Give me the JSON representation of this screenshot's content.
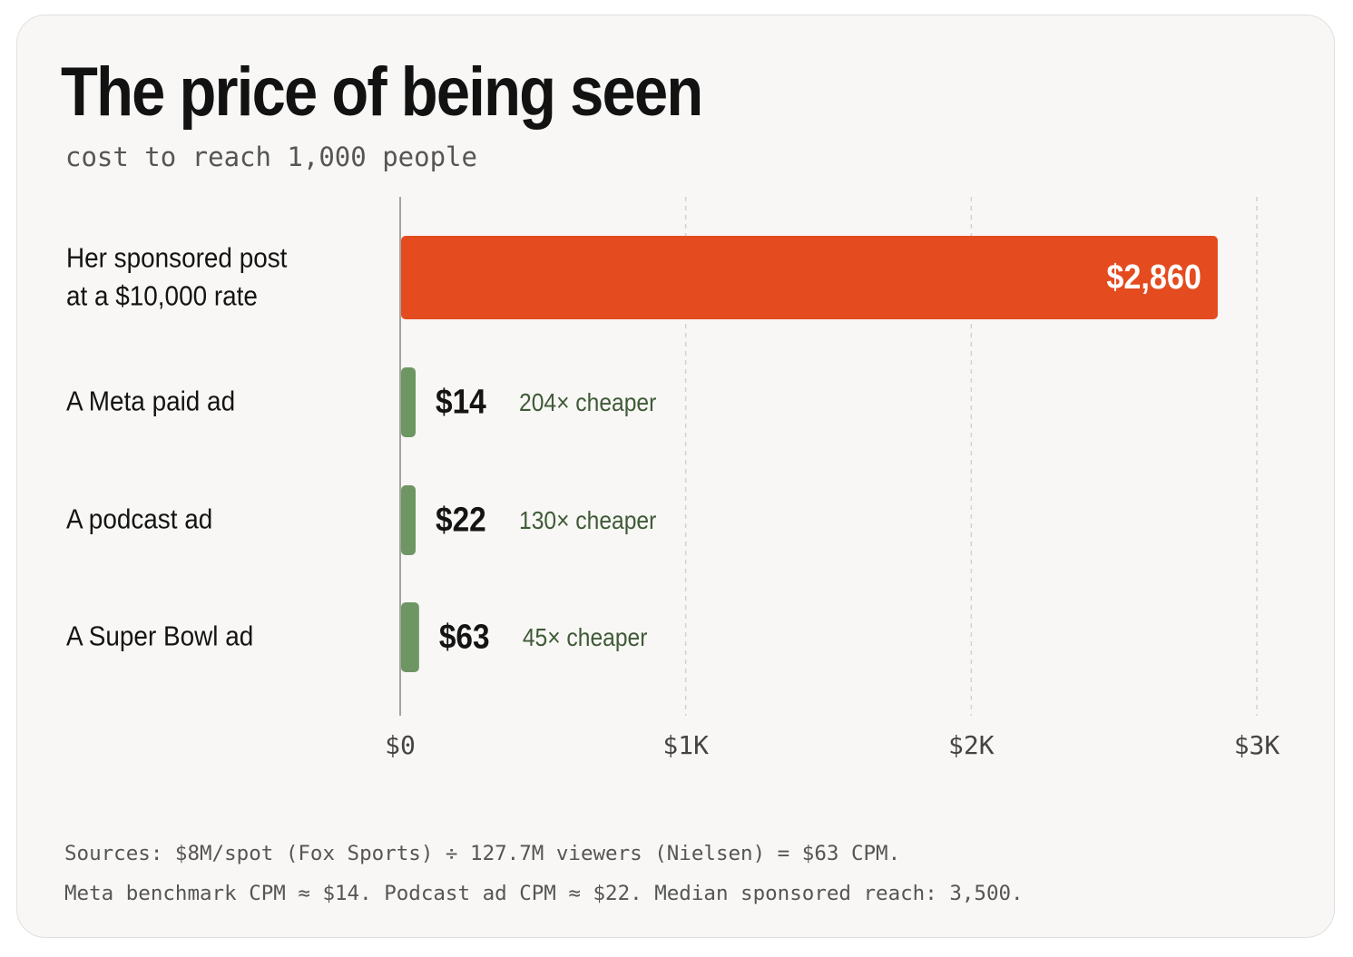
{
  "title": "The price of being seen",
  "subtitle": "cost to reach 1,000 people",
  "chart_data": {
    "type": "bar",
    "orientation": "horizontal",
    "unit": "USD per 1,000 people reached",
    "xlim": [
      0,
      3000
    ],
    "x_ticks": [
      {
        "value": 0,
        "label": "$0"
      },
      {
        "value": 1000,
        "label": "$1K"
      },
      {
        "value": 2000,
        "label": "$2K"
      },
      {
        "value": 3000,
        "label": "$3K"
      }
    ],
    "grid": "vertical dashed",
    "bars": [
      {
        "label_lines": [
          "Her sponsored post",
          "at a $10,000 rate"
        ],
        "value": 2860,
        "value_label": "$2,860",
        "note": "",
        "color": "#e44b1f",
        "value_label_inside": true
      },
      {
        "label_lines": [
          "A Meta paid ad"
        ],
        "value": 14,
        "value_label": "$14",
        "note": "204× cheaper",
        "color": "#6e9663",
        "value_label_inside": false
      },
      {
        "label_lines": [
          "A podcast ad"
        ],
        "value": 22,
        "value_label": "$22",
        "note": "130× cheaper",
        "color": "#6e9663",
        "value_label_inside": false
      },
      {
        "label_lines": [
          "A Super Bowl ad"
        ],
        "value": 63,
        "value_label": "$63",
        "note": "45× cheaper",
        "color": "#6e9663",
        "value_label_inside": false
      }
    ]
  },
  "sources": [
    "Sources: $8M/spot (Fox Sports) ÷ 127.7M viewers (Nielsen) = $63 CPM.",
    "Meta benchmark CPM ≈ $14. Podcast ad CPM ≈ $22. Median sponsored reach: 3,500."
  ]
}
